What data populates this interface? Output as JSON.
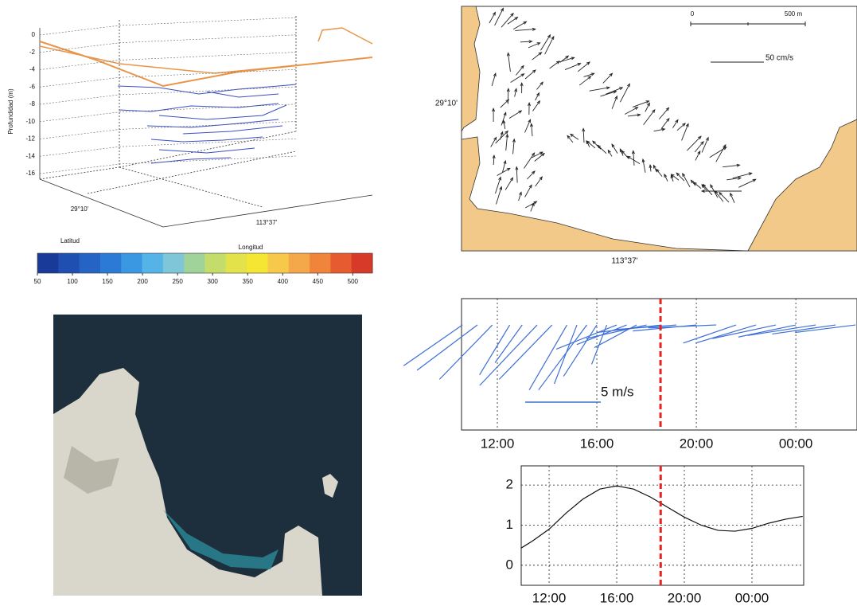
{
  "chart_data": [
    {
      "type": "surface3d",
      "z_label": "Profundidad (m)",
      "zticks": [
        0,
        -2,
        -4,
        -6,
        -8,
        -10,
        -12,
        -14,
        -16
      ],
      "lat_tick": "29°10'",
      "lon_tick": "113°37'",
      "x_title": "Latitud",
      "y_title": "Longitud",
      "colorbar": {
        "lim": [
          50,
          528
        ],
        "ticks": [
          50,
          100,
          150,
          200,
          250,
          300,
          350,
          400,
          450,
          500
        ],
        "colors": [
          "#1a3a9a",
          "#1f4fb0",
          "#2563c4",
          "#2b7bd6",
          "#3a97e2",
          "#55b3e8",
          "#7ec6d8",
          "#9fd39a",
          "#c4dc6a",
          "#e4e24a",
          "#f4e632",
          "#f7c84a",
          "#f5a84a",
          "#f0843a",
          "#e65c30",
          "#d83a2a"
        ]
      }
    },
    {
      "type": "vector_map",
      "lat_tick": "29°10'",
      "lon_tick": "113°37'",
      "scale_bar_labels": [
        "0",
        "500 m"
      ],
      "reference_vector_label": "50 cm/s"
    },
    {
      "type": "stick",
      "color": "#3d6fd6",
      "xlim": [
        10.56,
        26.46
      ],
      "xticks": [
        {
          "value": 12,
          "label": "12:00"
        },
        {
          "value": 16,
          "label": "16:00"
        },
        {
          "value": 20,
          "label": "20:00"
        },
        {
          "value": 24,
          "label": "00:00"
        }
      ],
      "ylim": [
        -6.95,
        1.74
      ],
      "x": [
        10.6,
        11.2,
        11.8,
        12.5,
        13.0,
        13.6,
        14.2,
        14.8,
        15.2,
        15.6,
        16.0,
        16.4,
        16.8,
        17.2,
        17.6,
        18.0,
        18.6,
        19.2,
        20.0,
        20.8,
        21.6,
        22.4,
        23.2,
        24.0,
        24.8,
        25.6,
        26.4
      ],
      "u": [
        -3.9,
        -4.0,
        -3.5,
        -2.0,
        -1.8,
        -3.8,
        -3.5,
        -2.5,
        -1.5,
        -3.2,
        -2.2,
        -1.0,
        -4.0,
        -3.3,
        -2.8,
        -4.0,
        -4.3,
        -4.0,
        -4.2,
        -4.5,
        -3.5,
        -4.0,
        -4.2,
        -3.8,
        -4.5,
        -4.2,
        -4.0
      ],
      "v": [
        -2.7,
        -3.0,
        -3.6,
        -3.3,
        -2.5,
        -4.0,
        -3.6,
        -4.3,
        -3.9,
        -4.3,
        -3.4,
        -2.6,
        -1.6,
        -1.3,
        -1.5,
        -0.9,
        -0.5,
        -0.3,
        -0.4,
        -0.2,
        -1.2,
        -1.2,
        -0.9,
        -0.8,
        -0.7,
        -0.6,
        -0.5
      ],
      "reference_value": 5,
      "reference_label": "5 m/s",
      "marker_x": 18.56,
      "marker_color": "#e8231f"
    },
    {
      "type": "line",
      "color": "#111111",
      "xlim": [
        10.35,
        27.06
      ],
      "xticks": [
        {
          "value": 12,
          "label": "12:00"
        },
        {
          "value": 16,
          "label": "16:00"
        },
        {
          "value": 20,
          "label": "20:00"
        },
        {
          "value": 24,
          "label": "00:00"
        }
      ],
      "ylim": [
        -0.5,
        2.48
      ],
      "yticks": [
        0,
        1,
        2
      ],
      "grid": true,
      "x": [
        10.35,
        11,
        12,
        13,
        14,
        15,
        16,
        17,
        18,
        19,
        20,
        21,
        22,
        23,
        24,
        25,
        26,
        27
      ],
      "values": [
        0.43,
        0.6,
        0.9,
        1.3,
        1.65,
        1.9,
        1.98,
        1.9,
        1.7,
        1.45,
        1.2,
        1.0,
        0.87,
        0.85,
        0.92,
        1.05,
        1.15,
        1.22
      ],
      "marker_x": 18.6,
      "marker_color": "#e8231f"
    }
  ]
}
